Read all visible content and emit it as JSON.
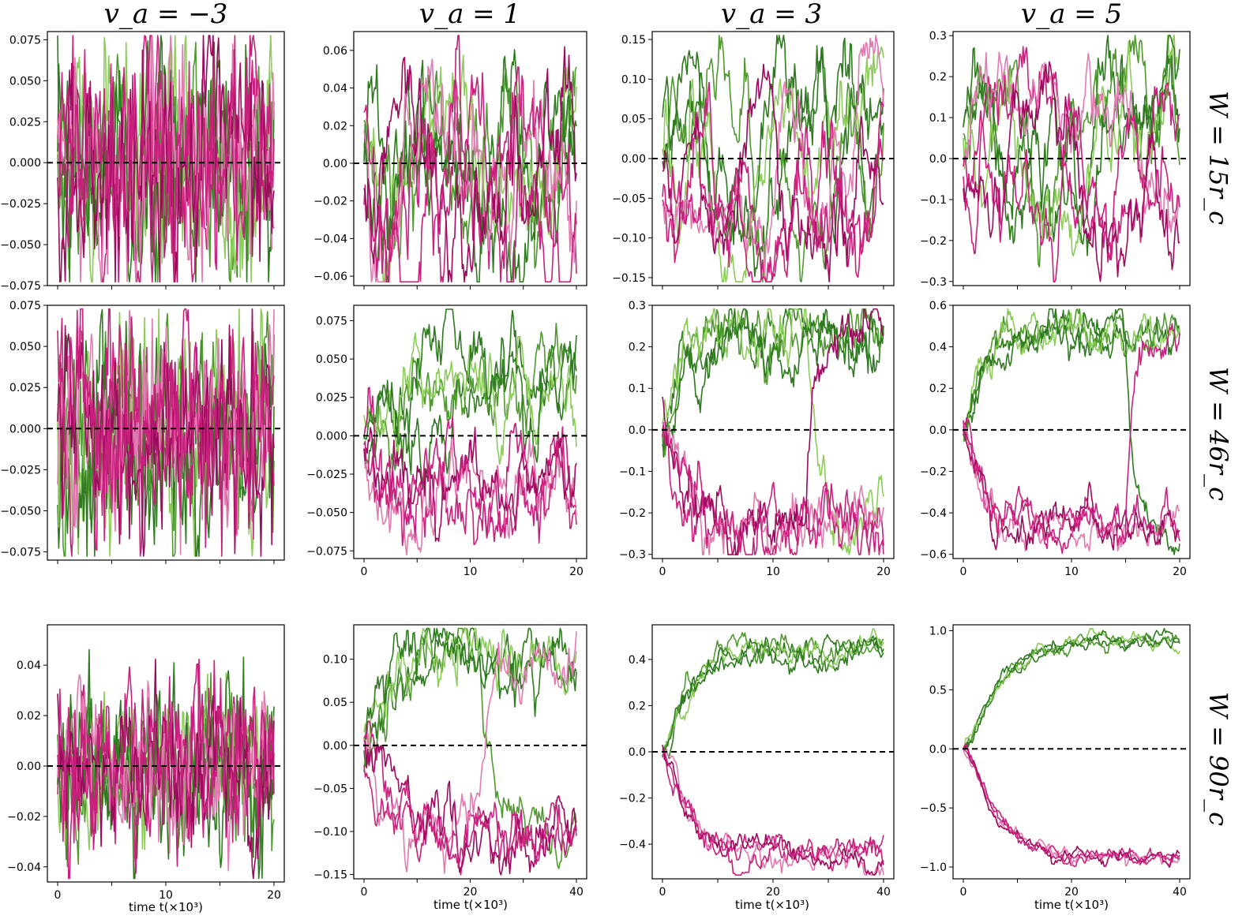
{
  "column_titles": [
    "v_a = −3",
    "v_a = 1",
    "v_a = 3",
    "v_a = 5"
  ],
  "row_labels": [
    "W = 15r_c",
    "W = 46r_c",
    "W = 90r_c"
  ],
  "xlabel": "time t(×10³)",
  "colors": {
    "green_dark": "#2e7a1e",
    "green_mid": "#4f9a2e",
    "green_light": "#8ccc5a",
    "magenta_dark": "#9c0a5e",
    "magenta_mid": "#c8207c",
    "magenta_light": "#e27ab2",
    "reference_line": "#000000"
  },
  "chart_data": [
    {
      "type": "line",
      "row": 0,
      "col": 0,
      "xlim": [
        0,
        20
      ],
      "ylim": [
        -0.075,
        0.08
      ],
      "yticks": [
        "0.075",
        "0.050",
        "0.025",
        "0.000",
        "−0.025",
        "−0.050",
        "−0.075"
      ],
      "xticks": [],
      "reference_line": 0,
      "series": [
        {
          "color": "green",
          "values": "rapid oscillation about 0, amplitude ≈0.05"
        },
        {
          "color": "magenta",
          "values": "rapid oscillation about 0, amplitude ≈0.05"
        }
      ]
    },
    {
      "type": "line",
      "row": 0,
      "col": 1,
      "xlim": [
        0,
        20
      ],
      "ylim": [
        -0.065,
        0.07
      ],
      "yticks": [
        "0.06",
        "0.04",
        "0.02",
        "0.00",
        "−0.02",
        "−0.04",
        "−0.06"
      ],
      "xticks": [],
      "reference_line": 0,
      "series": [
        {
          "color": "green",
          "values": "fluctuating, mostly positive ≈0.01"
        },
        {
          "color": "magenta",
          "values": "fluctuating, mostly negative ≈−0.01"
        }
      ]
    },
    {
      "type": "line",
      "row": 0,
      "col": 2,
      "xlim": [
        0,
        20
      ],
      "ylim": [
        -0.16,
        0.16
      ],
      "yticks": [
        "0.15",
        "0.10",
        "0.05",
        "0.00",
        "−0.05",
        "−0.10",
        "−0.15"
      ],
      "xticks": [],
      "reference_line": 0,
      "series": [
        {
          "color": "green",
          "values": "switching between ±0.13"
        },
        {
          "color": "magenta",
          "values": "switching between ±0.13"
        }
      ]
    },
    {
      "type": "line",
      "row": 0,
      "col": 3,
      "xlim": [
        0,
        20
      ],
      "ylim": [
        -0.31,
        0.31
      ],
      "yticks": [
        "0.3",
        "0.2",
        "0.1",
        "0.0",
        "−0.1",
        "−0.2",
        "−0.3"
      ],
      "xticks": [],
      "reference_line": 0,
      "series": [
        {
          "color": "green",
          "values": "switching between ±0.2"
        },
        {
          "color": "magenta",
          "values": "switching between ±0.2"
        }
      ]
    },
    {
      "type": "line",
      "row": 1,
      "col": 0,
      "xlim": [
        0,
        20
      ],
      "ylim": [
        -0.08,
        0.075
      ],
      "yticks": [
        "0.075",
        "0.050",
        "0.025",
        "0.000",
        "−0.025",
        "−0.050",
        "−0.075"
      ],
      "xticks": [],
      "reference_line": 0,
      "series": [
        {
          "color": "green",
          "values": "rapid oscillation about 0, amplitude ≈0.05"
        },
        {
          "color": "magenta",
          "values": "rapid oscillation about 0, amplitude ≈0.05"
        }
      ]
    },
    {
      "type": "line",
      "row": 1,
      "col": 1,
      "xlim": [
        0,
        20
      ],
      "ylim": [
        -0.08,
        0.085
      ],
      "yticks": [
        "0.075",
        "0.050",
        "0.025",
        "0.000",
        "−0.025",
        "−0.050",
        "−0.075"
      ],
      "xticks": [
        "0",
        "10",
        "20"
      ],
      "reference_line": 0,
      "series": [
        {
          "color": "green",
          "values": "rising to ≈0.04"
        },
        {
          "color": "magenta",
          "values": "falling to ≈−0.04"
        }
      ]
    },
    {
      "type": "line",
      "row": 1,
      "col": 2,
      "xlim": [
        0,
        20
      ],
      "ylim": [
        -0.31,
        0.3
      ],
      "yticks": [
        "0.3",
        "0.2",
        "0.1",
        "0.0",
        "−0.1",
        "−0.2",
        "−0.3"
      ],
      "xticks": [
        "0",
        "10",
        "20"
      ],
      "reference_line": 0,
      "series": [
        {
          "color": "green",
          "values": "plateau ≈0.23, some switch to −0.22"
        },
        {
          "color": "magenta",
          "values": "plateau ≈−0.22"
        }
      ]
    },
    {
      "type": "line",
      "row": 1,
      "col": 3,
      "xlim": [
        0,
        20
      ],
      "ylim": [
        -0.62,
        0.6
      ],
      "yticks": [
        "0.6",
        "0.4",
        "0.2",
        "0.0",
        "−0.2",
        "−0.4",
        "−0.6"
      ],
      "xticks": [
        "0",
        "10",
        "20"
      ],
      "reference_line": 0,
      "series": [
        {
          "color": "green",
          "values": "plateau ≈0.48"
        },
        {
          "color": "magenta",
          "values": "plateau ≈−0.45"
        }
      ]
    },
    {
      "type": "line",
      "row": 2,
      "col": 0,
      "xlim": [
        0,
        20
      ],
      "ylim": [
        -0.046,
        0.056
      ],
      "yticks": [
        "0.04",
        "0.02",
        "0.00",
        "−0.02",
        "−0.04"
      ],
      "xticks": [
        "0",
        "10",
        "20"
      ],
      "reference_line": 0,
      "series": [
        {
          "color": "green",
          "values": "oscillation about 0, amplitude ≈0.03"
        },
        {
          "color": "magenta",
          "values": "oscillation about 0, amplitude ≈0.03"
        }
      ]
    },
    {
      "type": "line",
      "row": 2,
      "col": 1,
      "xlim": [
        0,
        40
      ],
      "ylim": [
        -0.155,
        0.14
      ],
      "yticks": [
        "0.10",
        "0.05",
        "0.00",
        "−0.05",
        "−0.10",
        "−0.15"
      ],
      "xticks": [
        "0",
        "20",
        "40"
      ],
      "reference_line": 0,
      "series": [
        {
          "color": "green",
          "values": "plateau ≈0.10"
        },
        {
          "color": "magenta",
          "values": "plateau ≈−0.10"
        }
      ]
    },
    {
      "type": "line",
      "row": 2,
      "col": 2,
      "xlim": [
        0,
        40
      ],
      "ylim": [
        -0.55,
        0.55
      ],
      "yticks": [
        "0.4",
        "0.2",
        "0.0",
        "−0.2",
        "−0.4"
      ],
      "xticks": [
        "0",
        "20",
        "40"
      ],
      "reference_line": 0,
      "series": [
        {
          "color": "green",
          "values": "plateau ≈0.44"
        },
        {
          "color": "magenta",
          "values": "plateau ≈−0.46"
        }
      ]
    },
    {
      "type": "line",
      "row": 2,
      "col": 3,
      "xlim": [
        0,
        40
      ],
      "ylim": [
        -1.1,
        1.05
      ],
      "yticks": [
        "1.0",
        "0.5",
        "0.0",
        "−0.5",
        "−1.0"
      ],
      "xticks": [
        "0",
        "20",
        "40"
      ],
      "reference_line": 0,
      "series": [
        {
          "color": "green",
          "values": "rising to ≈0.95"
        },
        {
          "color": "magenta",
          "values": "falling to ≈−0.95"
        }
      ]
    }
  ]
}
